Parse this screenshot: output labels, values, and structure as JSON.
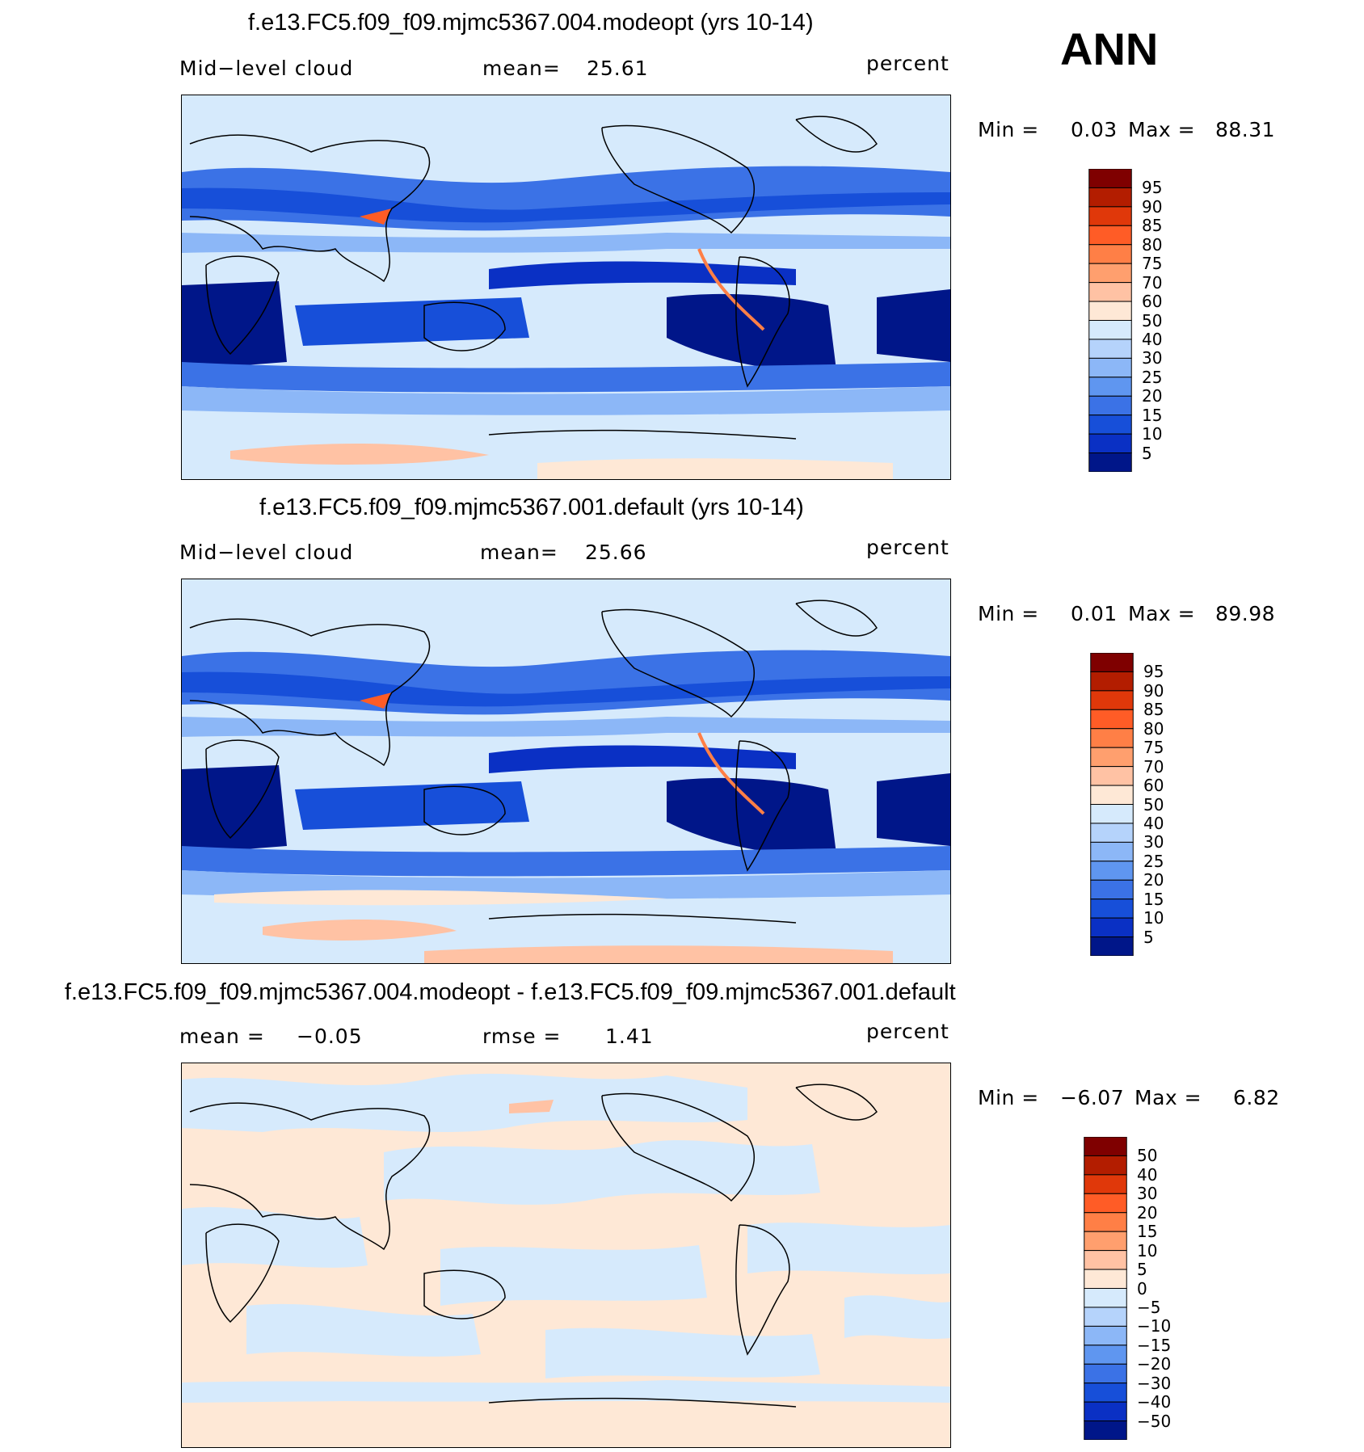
{
  "season": "ANN",
  "units": "percent",
  "panels": [
    {
      "title": "f.e13.FC5.f09_f09.mjmc5367.004.modeopt (yrs 10-14)",
      "left_label": "Mid−level cloud",
      "center_label": "mean=",
      "center_value": "25.61",
      "right_label": "percent",
      "min_label": "Min =",
      "min_value": "0.03",
      "max_label": "Max =",
      "max_value": "88.31",
      "colorbar": {
        "labels": [
          "95",
          "90",
          "85",
          "80",
          "75",
          "70",
          "60",
          "50",
          "40",
          "30",
          "25",
          "20",
          "15",
          "10",
          "5"
        ],
        "colors": [
          "#7f0000",
          "#b31d00",
          "#e0380a",
          "#ff5c26",
          "#ff7f46",
          "#ff9f6e",
          "#ffc2a4",
          "#fee8d6",
          "#d6eafc",
          "#b5d3fb",
          "#8cb7f7",
          "#5f96f0",
          "#3b72e6",
          "#174fd9",
          "#0a30c4",
          "#001689"
        ]
      }
    },
    {
      "title": "f.e13.FC5.f09_f09.mjmc5367.001.default (yrs 10-14)",
      "left_label": "Mid−level cloud",
      "center_label": "mean=",
      "center_value": "25.66",
      "right_label": "percent",
      "min_label": "Min =",
      "min_value": "0.01",
      "max_label": "Max =",
      "max_value": "89.98",
      "colorbar": {
        "labels": [
          "95",
          "90",
          "85",
          "80",
          "75",
          "70",
          "60",
          "50",
          "40",
          "30",
          "25",
          "20",
          "15",
          "10",
          "5"
        ],
        "colors": [
          "#7f0000",
          "#b31d00",
          "#e0380a",
          "#ff5c26",
          "#ff7f46",
          "#ff9f6e",
          "#ffc2a4",
          "#fee8d6",
          "#d6eafc",
          "#b5d3fb",
          "#8cb7f7",
          "#5f96f0",
          "#3b72e6",
          "#174fd9",
          "#0a30c4",
          "#001689"
        ]
      }
    },
    {
      "title": "f.e13.FC5.f09_f09.mjmc5367.004.modeopt - f.e13.FC5.f09_f09.mjmc5367.001.default",
      "left_label": "mean =",
      "left_value": "−0.05",
      "center_label": "rmse =",
      "center_value": "1.41",
      "right_label": "percent",
      "min_label": "Min =",
      "min_value": "−6.07",
      "max_label": "Max =",
      "max_value": "6.82",
      "colorbar": {
        "labels": [
          "50",
          "40",
          "30",
          "20",
          "15",
          "10",
          "5",
          "0",
          "−5",
          "−10",
          "−15",
          "−20",
          "−30",
          "−40",
          "−50"
        ],
        "colors": [
          "#7f0000",
          "#b31d00",
          "#e0380a",
          "#ff5c26",
          "#ff7f46",
          "#ff9f6e",
          "#ffc2a4",
          "#fee8d6",
          "#d6eafc",
          "#b5d3fb",
          "#8cb7f7",
          "#5f96f0",
          "#3b72e6",
          "#174fd9",
          "#0a30c4",
          "#001689"
        ]
      }
    }
  ]
}
